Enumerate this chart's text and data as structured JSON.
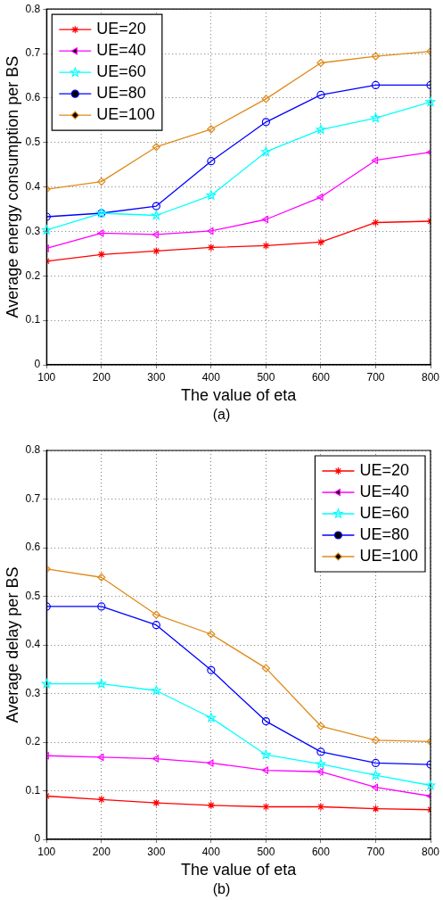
{
  "chart_data": [
    {
      "type": "line",
      "xlabel": "The value of eta",
      "ylabel": "Average energy consumption per BS",
      "annotations": [
        "(a)"
      ],
      "x": [
        100,
        200,
        300,
        400,
        500,
        600,
        700,
        800
      ],
      "xlim": [
        100,
        800
      ],
      "xticks": [
        100,
        200,
        300,
        400,
        500,
        600,
        700,
        800
      ],
      "ylim": [
        0,
        0.8
      ],
      "yticks": [
        0,
        0.1,
        0.2,
        0.3,
        0.4,
        0.5,
        0.6,
        0.7,
        0.8
      ],
      "grid": true,
      "legend": "top left",
      "line_style": "solid",
      "series": [
        {
          "name": "UE=20",
          "color": "#ff0000",
          "marker": "cross",
          "values": [
            0.233,
            0.248,
            0.256,
            0.264,
            0.268,
            0.276,
            0.32,
            0.323
          ]
        },
        {
          "name": "UE=40",
          "color": "#ff00ff",
          "marker": "triangle",
          "values": [
            0.262,
            0.296,
            0.293,
            0.301,
            0.327,
            0.377,
            0.46,
            0.478
          ]
        },
        {
          "name": "UE=60",
          "color": "#00ffff",
          "marker": "star",
          "values": [
            0.303,
            0.341,
            0.336,
            0.381,
            0.479,
            0.529,
            0.555,
            0.591
          ]
        },
        {
          "name": "UE=80",
          "color": "#0000ff",
          "marker": "circle",
          "values": [
            0.333,
            0.341,
            0.357,
            0.458,
            0.546,
            0.607,
            0.629,
            0.629
          ]
        },
        {
          "name": "UE=100",
          "color": "#df8a1a",
          "marker": "diamond",
          "values": [
            0.395,
            0.412,
            0.49,
            0.53,
            0.598,
            0.679,
            0.694,
            0.705
          ]
        }
      ]
    },
    {
      "type": "line",
      "xlabel": "The value of eta",
      "ylabel": "Average delay per BS",
      "annotations": [
        "(b)"
      ],
      "x": [
        100,
        200,
        300,
        400,
        500,
        600,
        700,
        800
      ],
      "xlim": [
        100,
        800
      ],
      "xticks": [
        100,
        200,
        300,
        400,
        500,
        600,
        700,
        800
      ],
      "ylim": [
        0,
        0.8
      ],
      "yticks": [
        0,
        0.1,
        0.2,
        0.3,
        0.4,
        0.5,
        0.6,
        0.7,
        0.8
      ],
      "grid": true,
      "legend": "top right",
      "line_style": "solid",
      "series": [
        {
          "name": "UE=20",
          "color": "#ff0000",
          "marker": "cross",
          "values": [
            0.089,
            0.082,
            0.075,
            0.07,
            0.067,
            0.067,
            0.063,
            0.061
          ]
        },
        {
          "name": "UE=40",
          "color": "#ff00ff",
          "marker": "triangle",
          "values": [
            0.172,
            0.169,
            0.166,
            0.157,
            0.142,
            0.139,
            0.107,
            0.089
          ]
        },
        {
          "name": "UE=60",
          "color": "#00ffff",
          "marker": "star",
          "values": [
            0.32,
            0.32,
            0.306,
            0.25,
            0.174,
            0.155,
            0.132,
            0.111
          ]
        },
        {
          "name": "UE=80",
          "color": "#0000ff",
          "marker": "circle",
          "values": [
            0.479,
            0.479,
            0.441,
            0.348,
            0.243,
            0.18,
            0.157,
            0.154
          ]
        },
        {
          "name": "UE=100",
          "color": "#df8a1a",
          "marker": "diamond",
          "values": [
            0.556,
            0.539,
            0.462,
            0.422,
            0.352,
            0.233,
            0.204,
            0.201
          ]
        }
      ]
    }
  ]
}
